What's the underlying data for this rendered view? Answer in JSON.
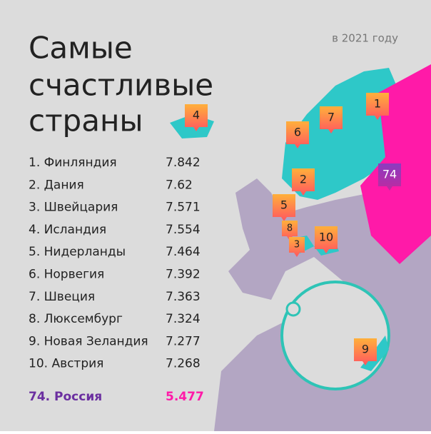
{
  "header": {
    "title": [
      "Самые",
      "счастливые",
      "страны"
    ],
    "subtitle": "в 2021 году"
  },
  "ranking": {
    "rows": [
      {
        "country": "1. Финляндия",
        "score": 7.842
      },
      {
        "country": "2. Дания",
        "score": 7.62
      },
      {
        "country": "3. Швейцария",
        "score": 7.571
      },
      {
        "country": "4. Исландия",
        "score": 7.554
      },
      {
        "country": "5. Нидерланды",
        "score": 7.464
      },
      {
        "country": "6. Норвегия",
        "score": 7.392
      },
      {
        "country": "7. Швеция",
        "score": 7.363
      },
      {
        "country": "8. Люксембург",
        "score": 7.324
      },
      {
        "country": "9. Новая Зеландия",
        "score": 7.277
      },
      {
        "country": "10. Австрия",
        "score": 7.268
      }
    ],
    "highlight": {
      "country": "74. Россия",
      "score": 5.477
    }
  },
  "map": {
    "pins": [
      "4",
      "6",
      "7",
      "1",
      "2",
      "74",
      "5",
      "8",
      "3",
      "10",
      "9"
    ]
  }
}
